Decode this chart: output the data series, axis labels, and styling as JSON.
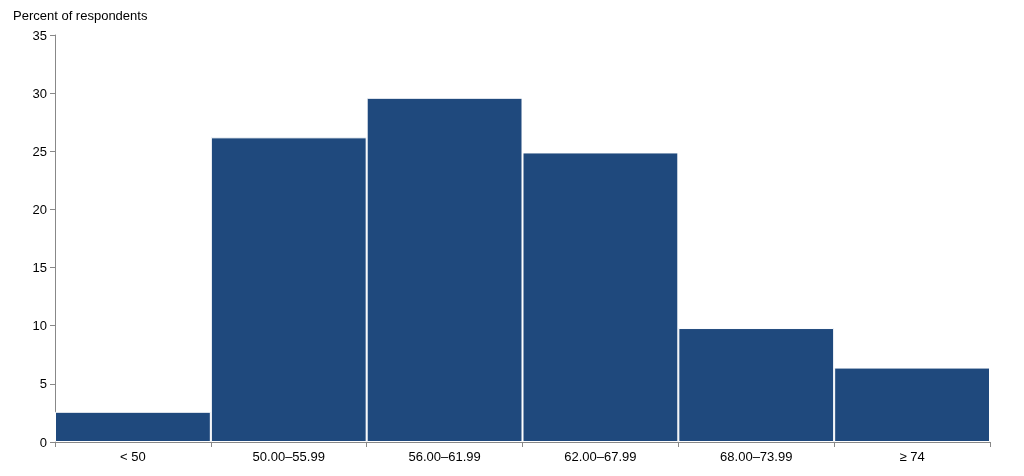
{
  "chart_data": {
    "type": "bar",
    "ylabel": "Percent of respondents",
    "categories": [
      "< 50",
      "50.00–55.99",
      "56.00–61.99",
      "62.00–67.99",
      "68.00–73.99",
      "≥ 74"
    ],
    "values": [
      2.6,
      26.2,
      29.6,
      24.9,
      9.8,
      6.4
    ],
    "color": "#1f497d",
    "ylim": [
      0,
      35
    ],
    "yticks": [
      0,
      5,
      10,
      15,
      20,
      25,
      30,
      35
    ],
    "grid": false
  }
}
